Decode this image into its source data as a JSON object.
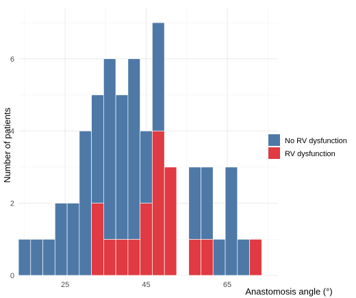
{
  "chart_data": {
    "type": "bar",
    "stacked": true,
    "xlabel": "Anastomosis angle (°)",
    "ylabel": "Number of patients",
    "xlim": [
      13.5,
      77.5
    ],
    "ylim": [
      0,
      7.4
    ],
    "bin_width": 3,
    "x_ticks": [
      25,
      45,
      65
    ],
    "y_ticks": [
      0,
      2,
      4,
      6
    ],
    "grid": true,
    "legend_position": "right",
    "bins": [
      15,
      18,
      21,
      24,
      27,
      30,
      33,
      36,
      39,
      42,
      45,
      48,
      51,
      54,
      57,
      60,
      63,
      66,
      69,
      72
    ],
    "series": [
      {
        "name": "No RV dysfunction",
        "color": "#4e79a7",
        "values": [
          1,
          1,
          1,
          2,
          2,
          4,
          3,
          5,
          4,
          5,
          2,
          3,
          0,
          0,
          2,
          2,
          1,
          3,
          1,
          0
        ]
      },
      {
        "name": "RV dysfunction",
        "color": "#e03a42",
        "values": [
          0,
          0,
          0,
          0,
          0,
          0,
          2,
          1,
          1,
          1,
          2,
          4,
          3,
          0,
          1,
          1,
          0,
          0,
          0,
          1
        ]
      }
    ]
  }
}
